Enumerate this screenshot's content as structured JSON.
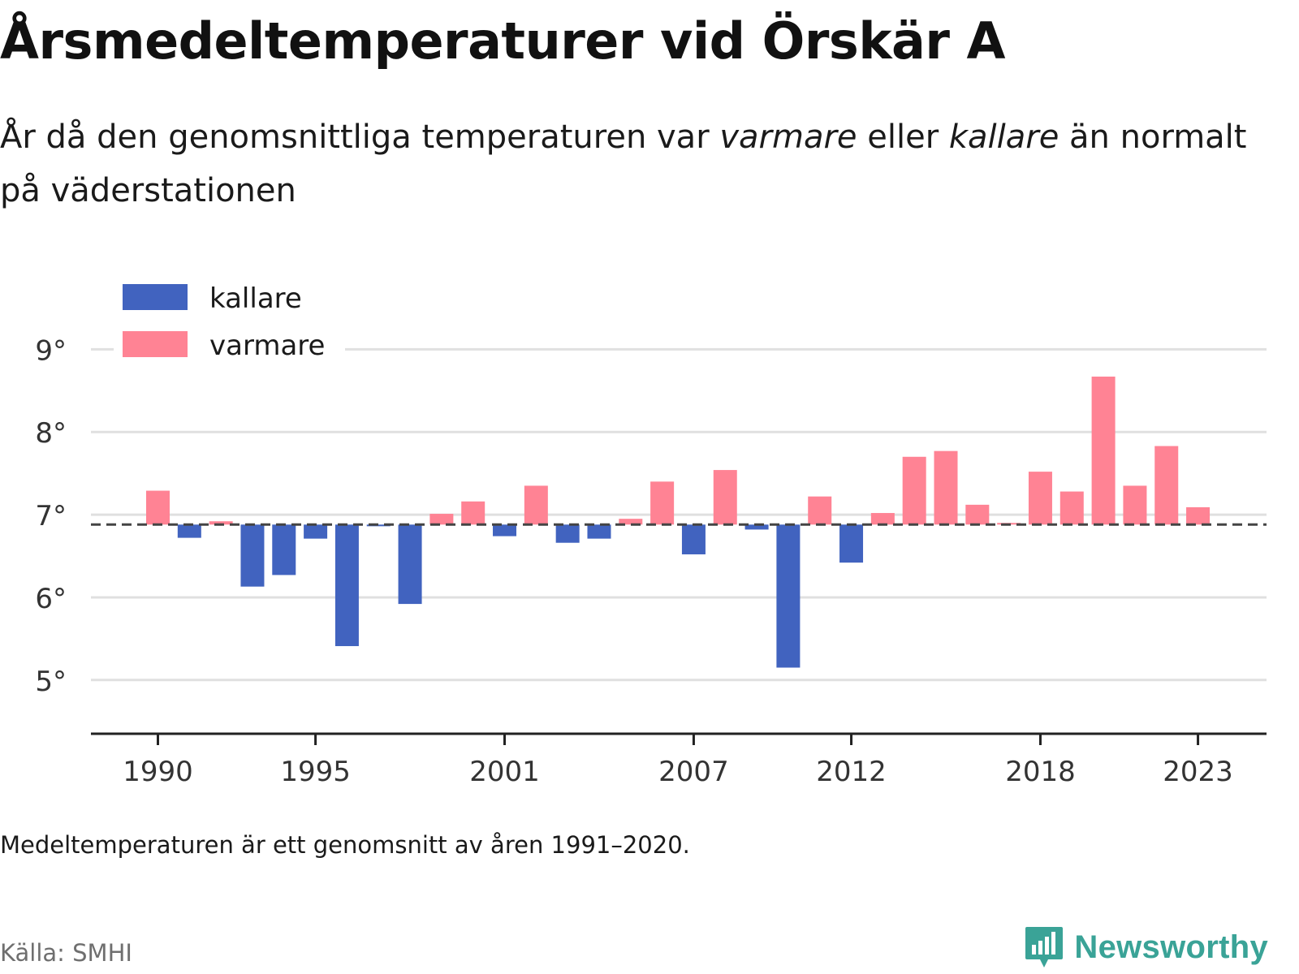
{
  "header": {
    "title": "Årsmedeltemperaturer vid Örskär A",
    "subtitle_parts": [
      "År då den genomsnittliga temperaturen var ",
      "varmare",
      " eller ",
      "kallare",
      " än normalt på väderstationen"
    ]
  },
  "footer": {
    "note": "Medeltemperaturen är ett genomsnitt av åren 1991–2020.",
    "source": "Källa: SMHI",
    "brand": "Newsworthy",
    "brand_icon": "bar-chart-icon"
  },
  "colors": {
    "kallare": "#4163bf",
    "varmare": "#ff8394",
    "gridline": "#e0e0e0",
    "baseline": "#444444",
    "axis": "#222222",
    "brand": "#3aa397"
  },
  "chart_data": {
    "type": "bar",
    "title": "Årsmedeltemperaturer vid Örskär A",
    "baseline": 6.88,
    "baseline_style": "dashed",
    "ylim": [
      4.35,
      9.2
    ],
    "y_ticks": [
      5,
      6,
      7,
      8,
      9
    ],
    "y_tick_labels": [
      "5°",
      "6°",
      "7°",
      "8°",
      "9°"
    ],
    "x_ticks": [
      1990,
      1995,
      2001,
      2007,
      2012,
      2018,
      2023
    ],
    "x_tick_labels": [
      "1990",
      "1995",
      "2001",
      "2007",
      "2012",
      "2018",
      "2023"
    ],
    "grid": true,
    "legend": {
      "placement": "top-left",
      "entries": [
        {
          "key": "kallare",
          "label": "kallare"
        },
        {
          "key": "varmare",
          "label": "varmare"
        }
      ]
    },
    "years": [
      1990,
      1991,
      1992,
      1993,
      1994,
      1995,
      1996,
      1997,
      1998,
      1999,
      2000,
      2001,
      2002,
      2003,
      2004,
      2005,
      2006,
      2007,
      2008,
      2009,
      2010,
      2011,
      2012,
      2013,
      2014,
      2015,
      2016,
      2017,
      2018,
      2019,
      2020,
      2021,
      2022,
      2023
    ],
    "values": [
      7.29,
      6.72,
      6.92,
      6.13,
      6.27,
      6.71,
      5.41,
      6.86,
      5.92,
      7.01,
      7.16,
      6.74,
      7.35,
      6.66,
      6.71,
      6.95,
      7.4,
      6.52,
      7.54,
      6.82,
      5.15,
      7.22,
      6.42,
      7.02,
      7.7,
      7.77,
      7.12,
      6.9,
      7.52,
      7.28,
      8.67,
      7.35,
      7.83,
      7.09
    ]
  }
}
